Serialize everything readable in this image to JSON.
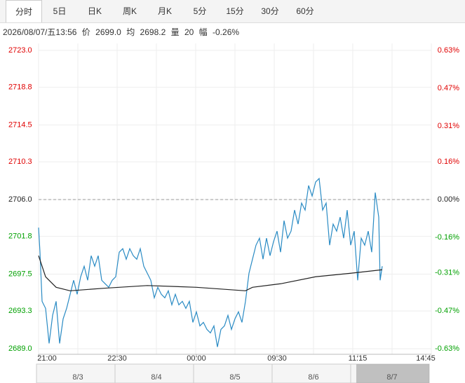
{
  "tabs": [
    "分时",
    "5日",
    "日K",
    "周K",
    "月K",
    "5分",
    "15分",
    "30分",
    "60分"
  ],
  "active_tab": 0,
  "info": {
    "time": "2026/08/07/五13:56",
    "price_label": "价",
    "price": "2699.0",
    "avg_label": "均",
    "avg": "2698.2",
    "vol_label": "量",
    "vol": "20",
    "range_label": "幅",
    "range": "-0.26%"
  },
  "chart_data": {
    "type": "line",
    "xlim": [
      0,
      560
    ],
    "xticks": [
      {
        "value": 0,
        "label": "21:00"
      },
      {
        "value": 112,
        "label": "22:30"
      },
      {
        "value": 225,
        "label": "00:00"
      },
      {
        "value": 340,
        "label": "09:30"
      },
      {
        "value": 455,
        "label": "11:15"
      },
      {
        "value": 552,
        "label": "14:45"
      }
    ],
    "ylim": [
      2689.0,
      2723.0
    ],
    "yticks": [
      {
        "value": 2689.0,
        "label": "2689.0"
      },
      {
        "value": 2693.3,
        "label": "2693.3"
      },
      {
        "value": 2697.5,
        "label": "2697.5"
      },
      {
        "value": 2701.8,
        "label": "2701.8"
      },
      {
        "value": 2706.0,
        "label": "2706.0"
      },
      {
        "value": 2710.3,
        "label": "2710.3"
      },
      {
        "value": 2714.5,
        "label": "2714.5"
      },
      {
        "value": 2718.8,
        "label": "2718.8"
      },
      {
        "value": 2723.0,
        "label": "2723.0"
      }
    ],
    "y2lim": [
      -0.63,
      0.63
    ],
    "y2ticks": [
      {
        "value": -0.63,
        "label": "-0.63%"
      },
      {
        "value": -0.47,
        "label": "-0.47%"
      },
      {
        "value": -0.31,
        "label": "-0.31%"
      },
      {
        "value": -0.16,
        "label": "-0.16%"
      },
      {
        "value": 0,
        "label": "0.00%"
      },
      {
        "value": 0.16,
        "label": "0.16%"
      },
      {
        "value": 0.31,
        "label": "0.31%"
      },
      {
        "value": 0.47,
        "label": "0.47%"
      },
      {
        "value": 0.63,
        "label": "0.63%"
      }
    ],
    "prev_close": 2706.0,
    "up_color": "#e00000",
    "down_color": "#00a000",
    "flat_color": "#222222",
    "series": [
      {
        "color": "#2a8bc4",
        "x": [
          0,
          2,
          5,
          10,
          15,
          20,
          25,
          30,
          35,
          40,
          45,
          50,
          55,
          60,
          65,
          70,
          75,
          80,
          85,
          90,
          95,
          100,
          105,
          110,
          115,
          120,
          125,
          130,
          135,
          140,
          145,
          150,
          155,
          160,
          165,
          170,
          175,
          180,
          185,
          190,
          195,
          200,
          205,
          210,
          215,
          220,
          225,
          230,
          235,
          240,
          245,
          250,
          255,
          260,
          265,
          270,
          275,
          280,
          285,
          290,
          295,
          300,
          305,
          310,
          315,
          320,
          325,
          330,
          335,
          340,
          345,
          350,
          355,
          360,
          365,
          370,
          375,
          380,
          385,
          390,
          395,
          400,
          405,
          410,
          415,
          420,
          425,
          430,
          435,
          440,
          445,
          450,
          455,
          460,
          465,
          470,
          475,
          480,
          485,
          487,
          490
        ],
        "values": [
          2702.8,
          2700.0,
          2694.4,
          2693.6,
          2689.6,
          2692.8,
          2694.4,
          2689.6,
          2692.4,
          2693.6,
          2695.2,
          2696.8,
          2695.2,
          2697.2,
          2698.4,
          2696.8,
          2699.6,
          2698.4,
          2699.6,
          2696.8,
          2696.4,
          2696.0,
          2696.8,
          2697.2,
          2700.0,
          2700.4,
          2699.2,
          2700.4,
          2699.6,
          2699.2,
          2700.4,
          2698.4,
          2697.6,
          2696.8,
          2694.8,
          2696.0,
          2695.2,
          2694.8,
          2695.6,
          2694.0,
          2695.2,
          2694.0,
          2694.4,
          2693.6,
          2694.4,
          2692.0,
          2693.2,
          2691.6,
          2692.0,
          2691.2,
          2690.8,
          2691.6,
          2689.2,
          2691.2,
          2691.6,
          2692.8,
          2691.2,
          2692.4,
          2693.2,
          2692.0,
          2694.4,
          2697.6,
          2699.2,
          2700.8,
          2701.6,
          2699.2,
          2701.6,
          2699.6,
          2701.2,
          2702.4,
          2700.0,
          2703.6,
          2701.6,
          2702.4,
          2704.8,
          2703.2,
          2705.6,
          2704.8,
          2707.6,
          2706.4,
          2708.0,
          2708.4,
          2704.8,
          2705.6,
          2700.8,
          2703.2,
          2702.4,
          2704.0,
          2701.6,
          2704.8,
          2700.8,
          2702.4,
          2696.8,
          2701.6,
          2700.8,
          2702.4,
          2700.0,
          2706.8,
          2704.0,
          2696.8,
          2698.4
        ]
      },
      {
        "color": "#222222",
        "x": [
          0,
          10,
          25,
          45,
          95,
          155,
          225,
          295,
          305,
          345,
          395,
          445,
          490
        ],
        "values": [
          2699.6,
          2697.2,
          2696.0,
          2695.6,
          2695.9,
          2696.2,
          2696.0,
          2695.6,
          2696.0,
          2696.4,
          2697.2,
          2697.6,
          2698.0
        ]
      }
    ]
  },
  "navigator": {
    "dates": [
      "8/3",
      "8/4",
      "8/5",
      "8/6",
      "8/7"
    ]
  }
}
